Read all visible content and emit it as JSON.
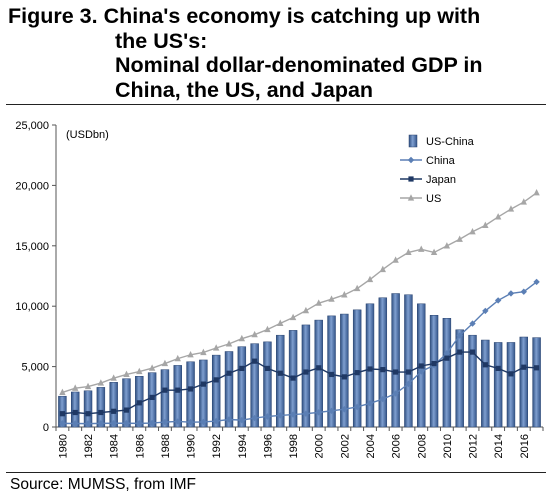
{
  "figure": {
    "title_line1": "Figure 3. China's economy is catching up with",
    "title_line2": "the US's:",
    "title_line3": "Nominal dollar-denominated GDP in",
    "title_line4": "China, the US, and Japan"
  },
  "source": "Source: MUMSS, from IMF",
  "chart_data": {
    "type": "bar+line",
    "unit_label": "(USDbn)",
    "ylim": [
      0,
      25000
    ],
    "yticks": [
      0,
      5000,
      10000,
      15000,
      20000,
      25000
    ],
    "ytick_labels": [
      "0",
      "5,000",
      "10,000",
      "15,000",
      "20,000",
      "25,000"
    ],
    "x": [
      1980,
      1981,
      1982,
      1983,
      1984,
      1985,
      1986,
      1987,
      1988,
      1989,
      1990,
      1991,
      1992,
      1993,
      1994,
      1995,
      1996,
      1997,
      1998,
      1999,
      2000,
      2001,
      2002,
      2003,
      2004,
      2005,
      2006,
      2007,
      2008,
      2009,
      2010,
      2011,
      2012,
      2013,
      2014,
      2015,
      2016,
      2017
    ],
    "xtick_labels": [
      "1980",
      "1982",
      "1984",
      "1986",
      "1988",
      "1990",
      "1992",
      "1994",
      "1996",
      "1998",
      "2000",
      "2002",
      "2004",
      "2006",
      "2008",
      "2010",
      "2012",
      "2014",
      "2016"
    ],
    "legend_position": "top-right",
    "grid": false,
    "series": [
      {
        "name": "US-China",
        "kind": "bar",
        "color": "#4f6f9f",
        "values": [
          2550,
          2900,
          3000,
          3280,
          3700,
          4000,
          4200,
          4500,
          4750,
          5100,
          5400,
          5550,
          5950,
          6250,
          6650,
          6900,
          7050,
          7600,
          8000,
          8450,
          8850,
          9200,
          9350,
          9700,
          10200,
          10700,
          11050,
          10950,
          10200,
          9250,
          9000,
          8050,
          7600,
          7200,
          7000,
          7000,
          7450,
          7400
        ]
      },
      {
        "name": "China",
        "kind": "line",
        "color": "#5b7fb5",
        "marker": "diamond",
        "values": [
          300,
          290,
          280,
          300,
          310,
          310,
          300,
          330,
          410,
          460,
          400,
          420,
          490,
          620,
          570,
          740,
          870,
          960,
          1030,
          1100,
          1210,
          1340,
          1470,
          1660,
          1960,
          2310,
          2770,
          3570,
          4600,
          5110,
          6100,
          7570,
          8560,
          9610,
          10480,
          11060,
          11200,
          12010
        ]
      },
      {
        "name": "Japan",
        "kind": "line",
        "color": "#1f3864",
        "marker": "square",
        "values": [
          1100,
          1200,
          1100,
          1200,
          1300,
          1400,
          2000,
          2450,
          3050,
          3050,
          3150,
          3550,
          3900,
          4450,
          4850,
          5450,
          4850,
          4450,
          4050,
          4550,
          4900,
          4350,
          4150,
          4500,
          4800,
          4750,
          4550,
          4550,
          5050,
          5250,
          5700,
          6200,
          6200,
          5150,
          4850,
          4400,
          4950,
          4900
        ]
      },
      {
        "name": "US",
        "kind": "line",
        "color": "#a6a6a6",
        "marker": "triangle",
        "values": [
          2860,
          3210,
          3350,
          3640,
          4040,
          4350,
          4590,
          4870,
          5250,
          5660,
          5980,
          6170,
          6540,
          6880,
          7310,
          7640,
          8070,
          8580,
          9060,
          9630,
          10250,
          10580,
          10940,
          11460,
          12210,
          13040,
          13810,
          14450,
          14710,
          14450,
          14990,
          15540,
          16160,
          16690,
          17390,
          18040,
          18620,
          19390
        ]
      }
    ]
  }
}
